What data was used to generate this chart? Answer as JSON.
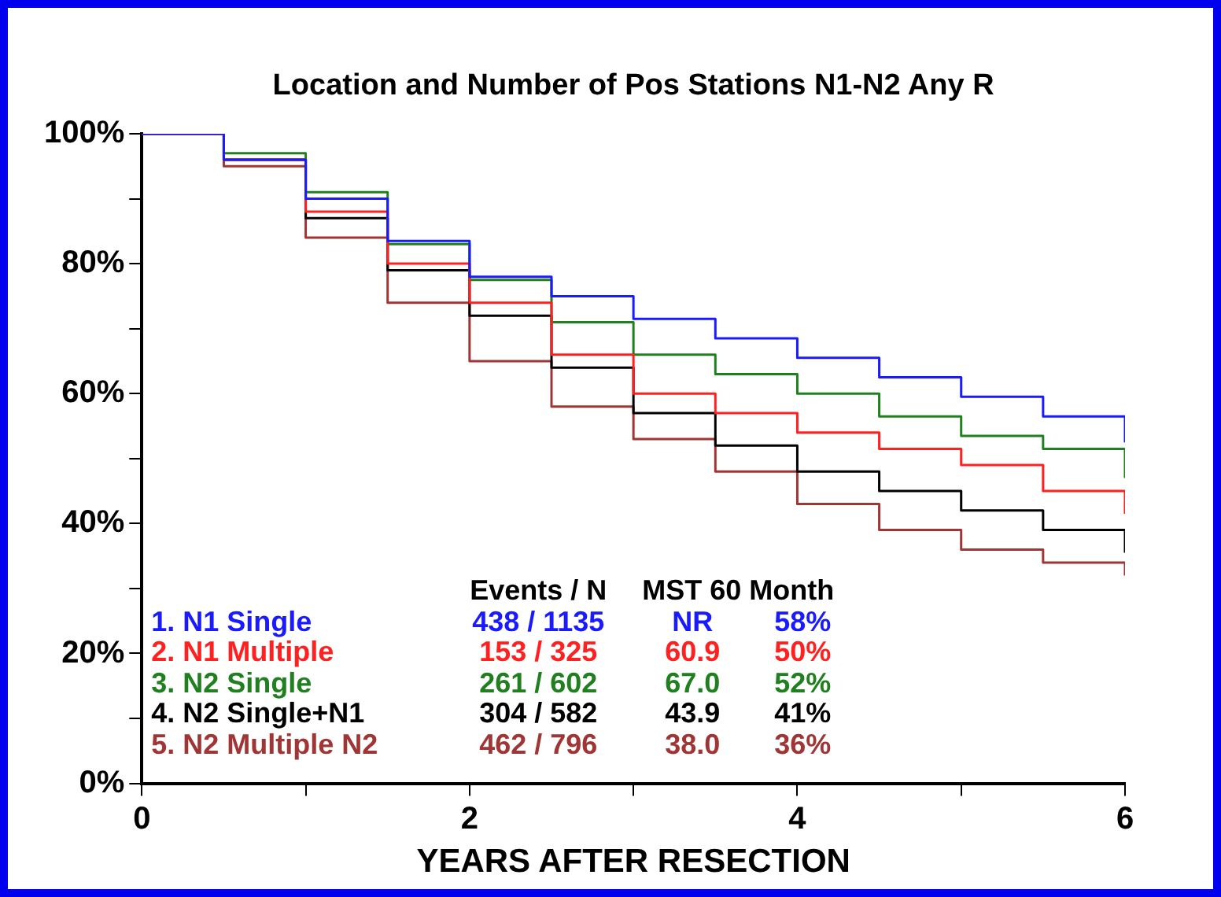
{
  "chart_data": {
    "type": "step",
    "title": "Location and Number of Pos Stations N1-N2 Any R",
    "xlabel": "YEARS AFTER RESECTION",
    "x": [
      0,
      0.5,
      1,
      1.5,
      2,
      2.5,
      3,
      3.5,
      4,
      4.5,
      5,
      5.5,
      6
    ],
    "series": [
      {
        "name": "1. N1 Single",
        "color": "#1a1aff",
        "values": [
          100,
          96,
          90,
          83.5,
          78,
          75,
          71.5,
          68.5,
          65.5,
          62.5,
          59.5,
          56.5,
          52.5
        ]
      },
      {
        "name": "2. N1 Multiple",
        "color": "#ff2020",
        "values": [
          100,
          96,
          88,
          80,
          74,
          66,
          60,
          57,
          54,
          51.5,
          49,
          45,
          41.5
        ]
      },
      {
        "name": "3. N2 Single",
        "color": "#208020",
        "values": [
          100,
          97,
          91,
          83,
          77.5,
          71,
          66,
          63,
          60,
          56.5,
          53.5,
          51.5,
          47
        ]
      },
      {
        "name": "4. N2 Single+N1",
        "color": "#000000",
        "values": [
          100,
          96,
          87,
          79,
          72,
          64,
          57,
          52,
          48,
          45,
          42,
          39,
          35.5
        ]
      },
      {
        "name": "5. N2 Multiple N2",
        "color": "#a03535",
        "values": [
          100,
          95,
          84,
          74,
          65,
          58,
          53,
          48,
          43,
          39,
          36,
          34,
          32
        ]
      }
    ],
    "annotations": [
      "Events / N",
      "MST 60 Month",
      "438 / 1135",
      "NR",
      "58%",
      "153 / 325",
      "60.9",
      "50%",
      "261 / 602",
      "67.0",
      "52%",
      "304 / 582",
      "43.9",
      "41%",
      "462 / 796",
      "38.0",
      "36%"
    ],
    "xlim": [
      0,
      6
    ],
    "xticks": [
      0,
      {
        "value": 1,
        "label": null
      },
      2,
      {
        "value": 3,
        "label": null
      },
      4,
      {
        "value": 5,
        "label": null
      },
      6
    ],
    "ylim": [
      0,
      100
    ],
    "yticks": [
      {
        "value": 0,
        "label": "0%"
      },
      {
        "value": 10,
        "label": null
      },
      {
        "value": 20,
        "label": "20%"
      },
      {
        "value": 30,
        "label": null
      },
      {
        "value": 40,
        "label": "40%"
      },
      {
        "value": 50,
        "label": null
      },
      {
        "value": 60,
        "label": "60%"
      },
      {
        "value": 70,
        "label": null
      },
      {
        "value": 80,
        "label": "80%"
      },
      {
        "value": 90,
        "label": null
      },
      {
        "value": 100,
        "label": "100%"
      }
    ],
    "grid": false,
    "legend": false,
    "marker": "none",
    "line_style": "solid"
  }
}
